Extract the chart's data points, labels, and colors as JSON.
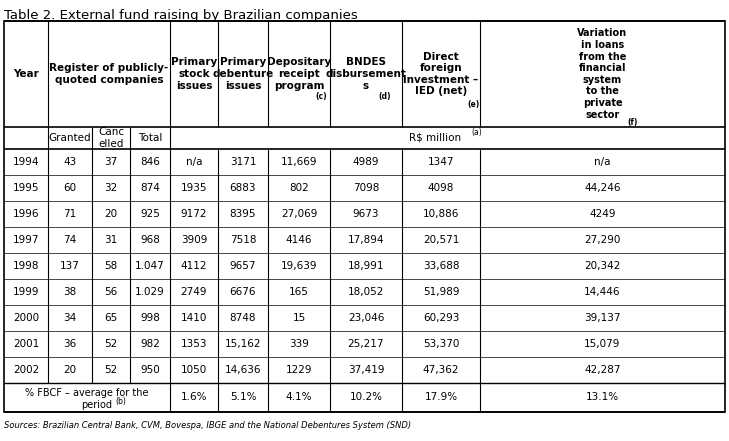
{
  "title": "Table 2. External fund raising by Brazilian companies",
  "source": "Sources: Brazilian Central Bank, CVM, Bovespa, IBGE and the National Debentures System (SND)",
  "col_headers_line1": [
    "Year",
    "Register of publicly-\nquoted companies",
    "Primary\nstock\nissues",
    "Primary\ndebenture\nissues",
    "Depositary\nreceipt\nprogram",
    "BNDES\ndisbursement\ns",
    "Direct\nforeign\ninvestment –\nIED (net)",
    "Variation\nin loans\nfrom the\nfinancial\nsystem\nto the\nprivate\nsector"
  ],
  "col_superscripts": [
    "",
    "",
    "",
    "",
    "(c)",
    "(d)",
    "(e)",
    "(f)"
  ],
  "sub_headers": [
    "Granted",
    "Canc\nelled",
    "Total",
    "R$ million(a)"
  ],
  "data": [
    [
      "1994",
      "43",
      "37",
      "846",
      "n/a",
      "3171",
      "11,669",
      "4989",
      "1347",
      "n/a"
    ],
    [
      "1995",
      "60",
      "32",
      "874",
      "1935",
      "6883",
      "802",
      "7098",
      "4098",
      "44,246"
    ],
    [
      "1996",
      "71",
      "20",
      "925",
      "9172",
      "8395",
      "27,069",
      "9673",
      "10,886",
      "4249"
    ],
    [
      "1997",
      "74",
      "31",
      "968",
      "3909",
      "7518",
      "4146",
      "17,894",
      "20,571",
      "27,290"
    ],
    [
      "1998",
      "137",
      "58",
      "1.047",
      "4112",
      "9657",
      "19,639",
      "18,991",
      "33,688",
      "20,342"
    ],
    [
      "1999",
      "38",
      "56",
      "1.029",
      "2749",
      "6676",
      "165",
      "18,052",
      "51,989",
      "14,446"
    ],
    [
      "2000",
      "34",
      "65",
      "998",
      "1410",
      "8748",
      "15",
      "23,046",
      "60,293",
      "39,137"
    ],
    [
      "2001",
      "36",
      "52",
      "982",
      "1353",
      "15,162",
      "339",
      "25,217",
      "53,370",
      "15,079"
    ],
    [
      "2002",
      "20",
      "52",
      "950",
      "1050",
      "14,636",
      "1229",
      "37,419",
      "47,362",
      "42,287"
    ]
  ],
  "fbcf_label_line1": "% FBCF – average for the",
  "fbcf_label_line2": "period(b)",
  "fbcf_vals": [
    "1.6%",
    "5.1%",
    "4.1%",
    "10.2%",
    "17.9%",
    "13.1%"
  ],
  "bg_color": "#FFFFFF",
  "line_color": "#000000",
  "font_size": 7.5,
  "title_font_size": 9.5
}
